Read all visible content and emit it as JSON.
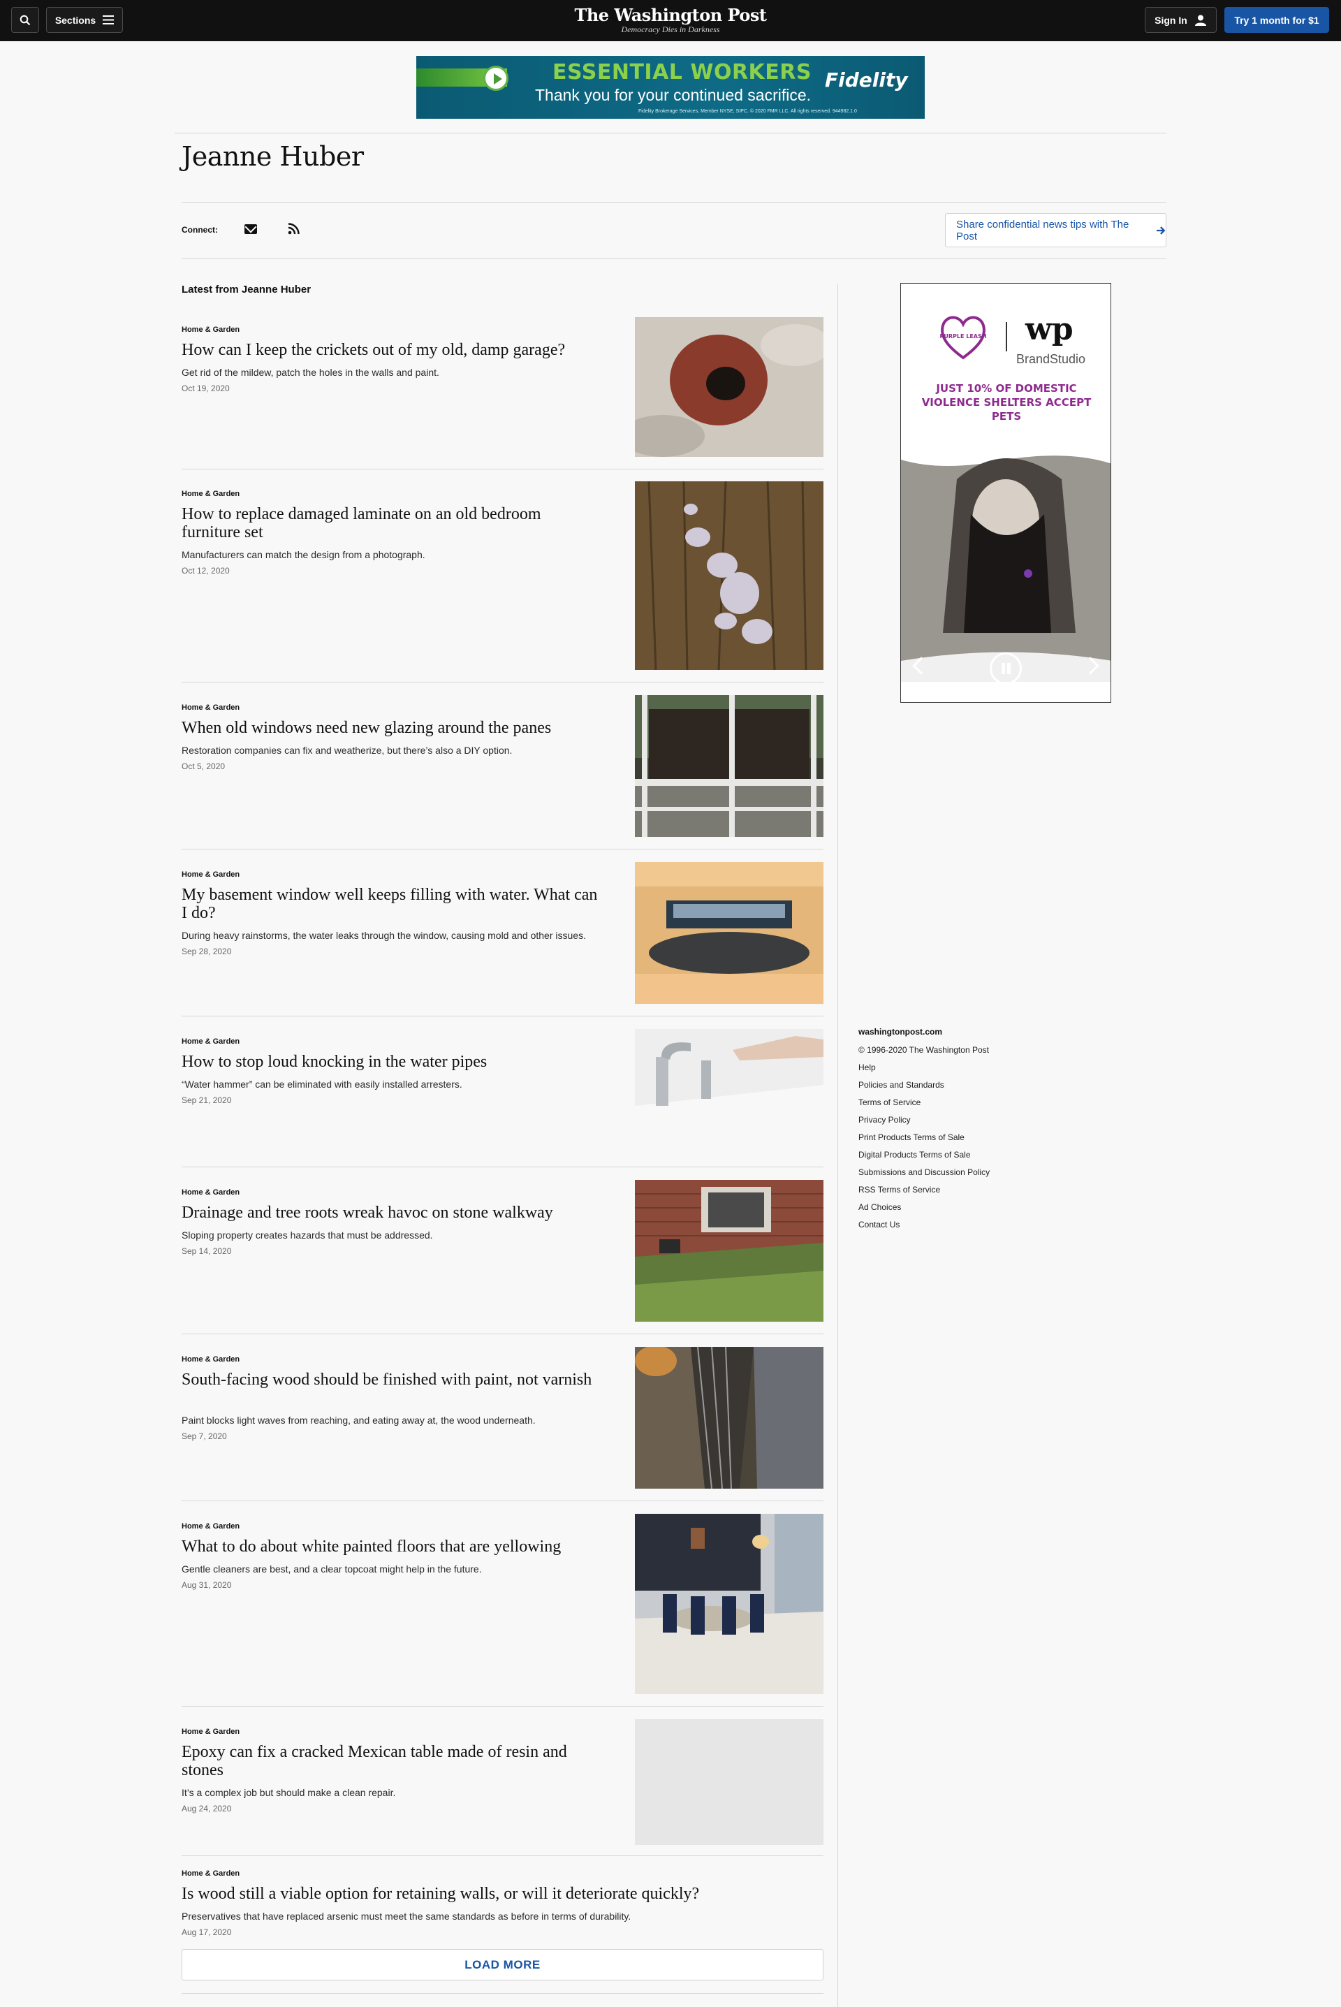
{
  "nav": {
    "sections_label": "Sections",
    "masthead": "The Washington Post",
    "tagline": "Democracy Dies in Darkness",
    "signin_label": "Sign In",
    "try_label": "Try 1 month for $1"
  },
  "top_ad": {
    "headline": "ESSENTIAL WORKERS",
    "subline": "Thank you for your continued sacrifice.",
    "brand": "Fidelity",
    "fine_print": "Fidelity Brokerage Services, Member NYSE, SIPC. © 2020 FMR LLC. All rights reserved. 944982.1.0"
  },
  "author": {
    "name": "Jeanne Huber",
    "connect_label": "Connect:",
    "tips_label": "Share confidential news tips with The Post"
  },
  "latest_label": "Latest from Jeanne Huber",
  "articles": [
    {
      "kicker": "Home & Garden",
      "headline": "How can I keep the crickets out of my old, damp garage?",
      "blurb": "Get rid of the mildew, patch the holes in the walls and paint.",
      "date": "Oct 19, 2020"
    },
    {
      "kicker": "Home & Garden",
      "headline": "How to replace damaged laminate on an old bedroom furniture set",
      "blurb": "Manufacturers can match the design from a photograph.",
      "date": "Oct 12, 2020"
    },
    {
      "kicker": "Home & Garden",
      "headline": "When old windows need new glazing around the panes",
      "blurb": "Restoration companies can fix and weatherize, but there’s also a DIY option.",
      "date": "Oct 5, 2020"
    },
    {
      "kicker": "Home & Garden",
      "headline": "My basement window well keeps filling with water. What can I do?",
      "blurb": "During heavy rainstorms, the water leaks through the window, causing mold and other issues.",
      "date": "Sep 28, 2020"
    },
    {
      "kicker": "Home & Garden",
      "headline": "How to stop loud knocking in the water pipes",
      "blurb": "“Water hammer” can be eliminated with easily installed arresters.",
      "date": "Sep 21, 2020"
    },
    {
      "kicker": "Home & Garden",
      "headline": "Drainage and tree roots wreak havoc on stone walkway",
      "blurb": "Sloping property creates hazards that must be addressed.",
      "date": "Sep 14, 2020"
    },
    {
      "kicker": "Home & Garden",
      "headline": "South-facing wood should be finished with paint, not varnish",
      "blurb": "Paint blocks light waves from reaching, and eating away at, the wood underneath.",
      "date": "Sep 7, 2020"
    },
    {
      "kicker": "Home & Garden",
      "headline": "What to do about white painted floors that are yellowing",
      "blurb": "Gentle cleaners are best, and a clear topcoat might help in the future.",
      "date": "Aug 31, 2020"
    },
    {
      "kicker": "Home & Garden",
      "headline": "Epoxy can fix a cracked Mexican table made of resin and stones",
      "blurb": "It’s a complex job but should make a clean repair.",
      "date": "Aug 24, 2020"
    },
    {
      "kicker": "Home & Garden",
      "headline": "Is wood still a viable option for retaining walls, or will it deteriorate quickly?",
      "blurb": "Preservatives that have replaced arsenic must meet the same standards as before in terms of durability.",
      "date": "Aug 17, 2020"
    }
  ],
  "load_more_label": "LOAD MORE",
  "side_ad": {
    "brand_logo": "PURPLE LEASH",
    "wp_mark": "wp",
    "brandstudio": "BrandStudio",
    "headline": "JUST 10% OF DOMESTIC VIOLENCE SHELTERS ACCEPT PETS"
  },
  "footer": {
    "site": "washingtonpost.com",
    "copyright": "© 1996-2020 The Washington Post",
    "links": [
      "Help",
      "Policies and Standards",
      "Terms of Service",
      "Privacy Policy",
      "Print Products Terms of Sale",
      "Digital Products Terms of Sale",
      "Submissions and Discussion Policy",
      "RSS Terms of Service",
      "Ad Choices",
      "Contact Us"
    ]
  },
  "icons": [
    "search-icon",
    "menu-icon",
    "user-icon",
    "mail-icon",
    "rss-icon",
    "arrow-right-icon",
    "pause-icon",
    "chevron-left-icon",
    "chevron-right-icon"
  ],
  "colors": {
    "accent": "#1955a5",
    "nav_bg": "#111111",
    "ad_purple": "#8e2a8e"
  }
}
